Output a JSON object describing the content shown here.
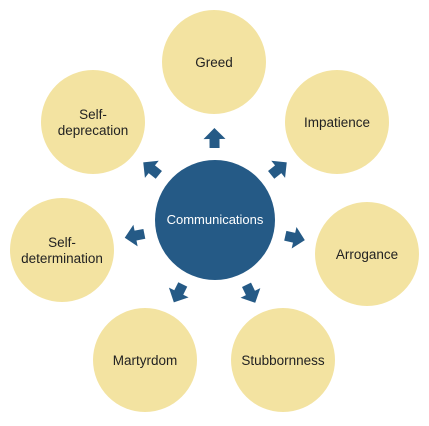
{
  "diagram": {
    "hub": {
      "label": "Communications"
    },
    "nodes": [
      {
        "id": "greed",
        "lines": [
          "Greed"
        ]
      },
      {
        "id": "impatience",
        "lines": [
          "Impatience"
        ]
      },
      {
        "id": "arrogance",
        "lines": [
          "Arrogance"
        ]
      },
      {
        "id": "stubbornness",
        "lines": [
          "Stubbornness"
        ]
      },
      {
        "id": "martyrdom",
        "lines": [
          "Martyrdom"
        ]
      },
      {
        "id": "self-determination",
        "lines": [
          "Self-",
          "determination"
        ]
      },
      {
        "id": "self-deprecation",
        "lines": [
          "Self-",
          "deprecation"
        ]
      }
    ],
    "colors": {
      "outer_fill": "#f3e3a1",
      "hub_fill": "#255a86",
      "arrow_fill": "#255a86",
      "outer_text": "#222222",
      "hub_text": "#ffffff"
    }
  }
}
